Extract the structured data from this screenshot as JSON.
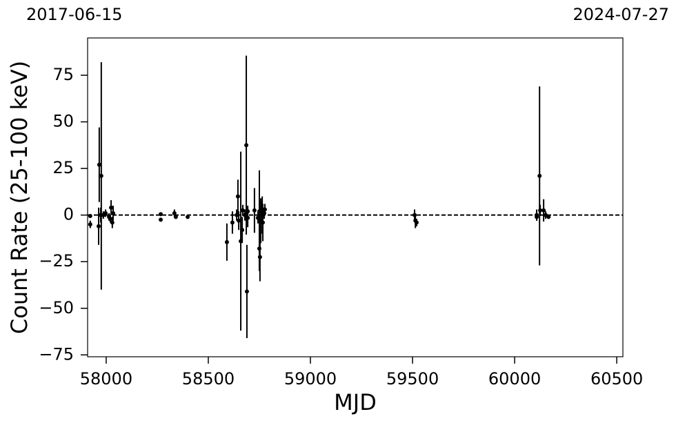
{
  "chart_data": {
    "type": "errorbar-scatter",
    "xlabel": "MJD",
    "ylabel": "Count Rate (25-100 keV)",
    "annotations": [
      "2017-06-15",
      "2024-07-27"
    ],
    "xlim": [
      57909,
      60530
    ],
    "xticks": [
      58000,
      58500,
      59000,
      59500,
      60000,
      60500
    ],
    "ylim": [
      -76,
      95
    ],
    "yticks": [
      {
        "value": -75,
        "label": "−75"
      },
      {
        "value": -50,
        "label": "−50"
      },
      {
        "value": -25,
        "label": "−25"
      },
      0,
      25,
      50,
      75
    ],
    "hline": 0,
    "color": "#000000",
    "x": [
      57922,
      57922,
      57963,
      57966,
      57976,
      57973,
      57986,
      57997,
      58014,
      58024,
      58030,
      58034,
      58020,
      58267,
      58267,
      58334,
      58341,
      58399,
      58591,
      58618,
      58639,
      58645,
      58649,
      58659,
      58666,
      58669,
      58679,
      58686,
      58689,
      58693,
      58693,
      58726,
      58743,
      58750,
      58753,
      58750,
      58757,
      58760,
      58764,
      58767,
      58774,
      58777,
      59510,
      59514,
      59520,
      60108,
      60108,
      60122,
      60125,
      60142,
      60152,
      60166
    ],
    "values": [
      -5,
      -0.5,
      -6,
      27,
      21,
      0,
      0,
      1,
      -1,
      4,
      -4,
      1,
      -2,
      0.5,
      -2.5,
      1,
      -1,
      -1,
      -14.5,
      -4,
      0,
      10,
      -3,
      -14,
      -8,
      2.5,
      0,
      37.5,
      -41,
      2,
      -1.5,
      2.5,
      -1.5,
      -18,
      -22.5,
      2,
      -3,
      3,
      0,
      -4,
      1,
      3,
      0,
      -3,
      -4,
      0,
      -1,
      21,
      2.5,
      2.5,
      0,
      -1
    ],
    "errors": [
      2,
      1,
      10,
      20,
      61,
      4,
      2,
      2,
      2,
      4,
      3,
      4,
      2,
      1,
      1,
      2,
      1,
      1,
      10,
      6,
      3,
      9,
      5,
      48,
      7,
      3,
      3,
      48,
      25,
      3,
      5,
      12,
      3,
      12,
      13,
      22,
      12,
      4,
      10,
      10,
      3,
      3,
      3,
      4,
      2,
      3,
      2,
      48,
      3,
      6,
      2,
      1
    ]
  }
}
